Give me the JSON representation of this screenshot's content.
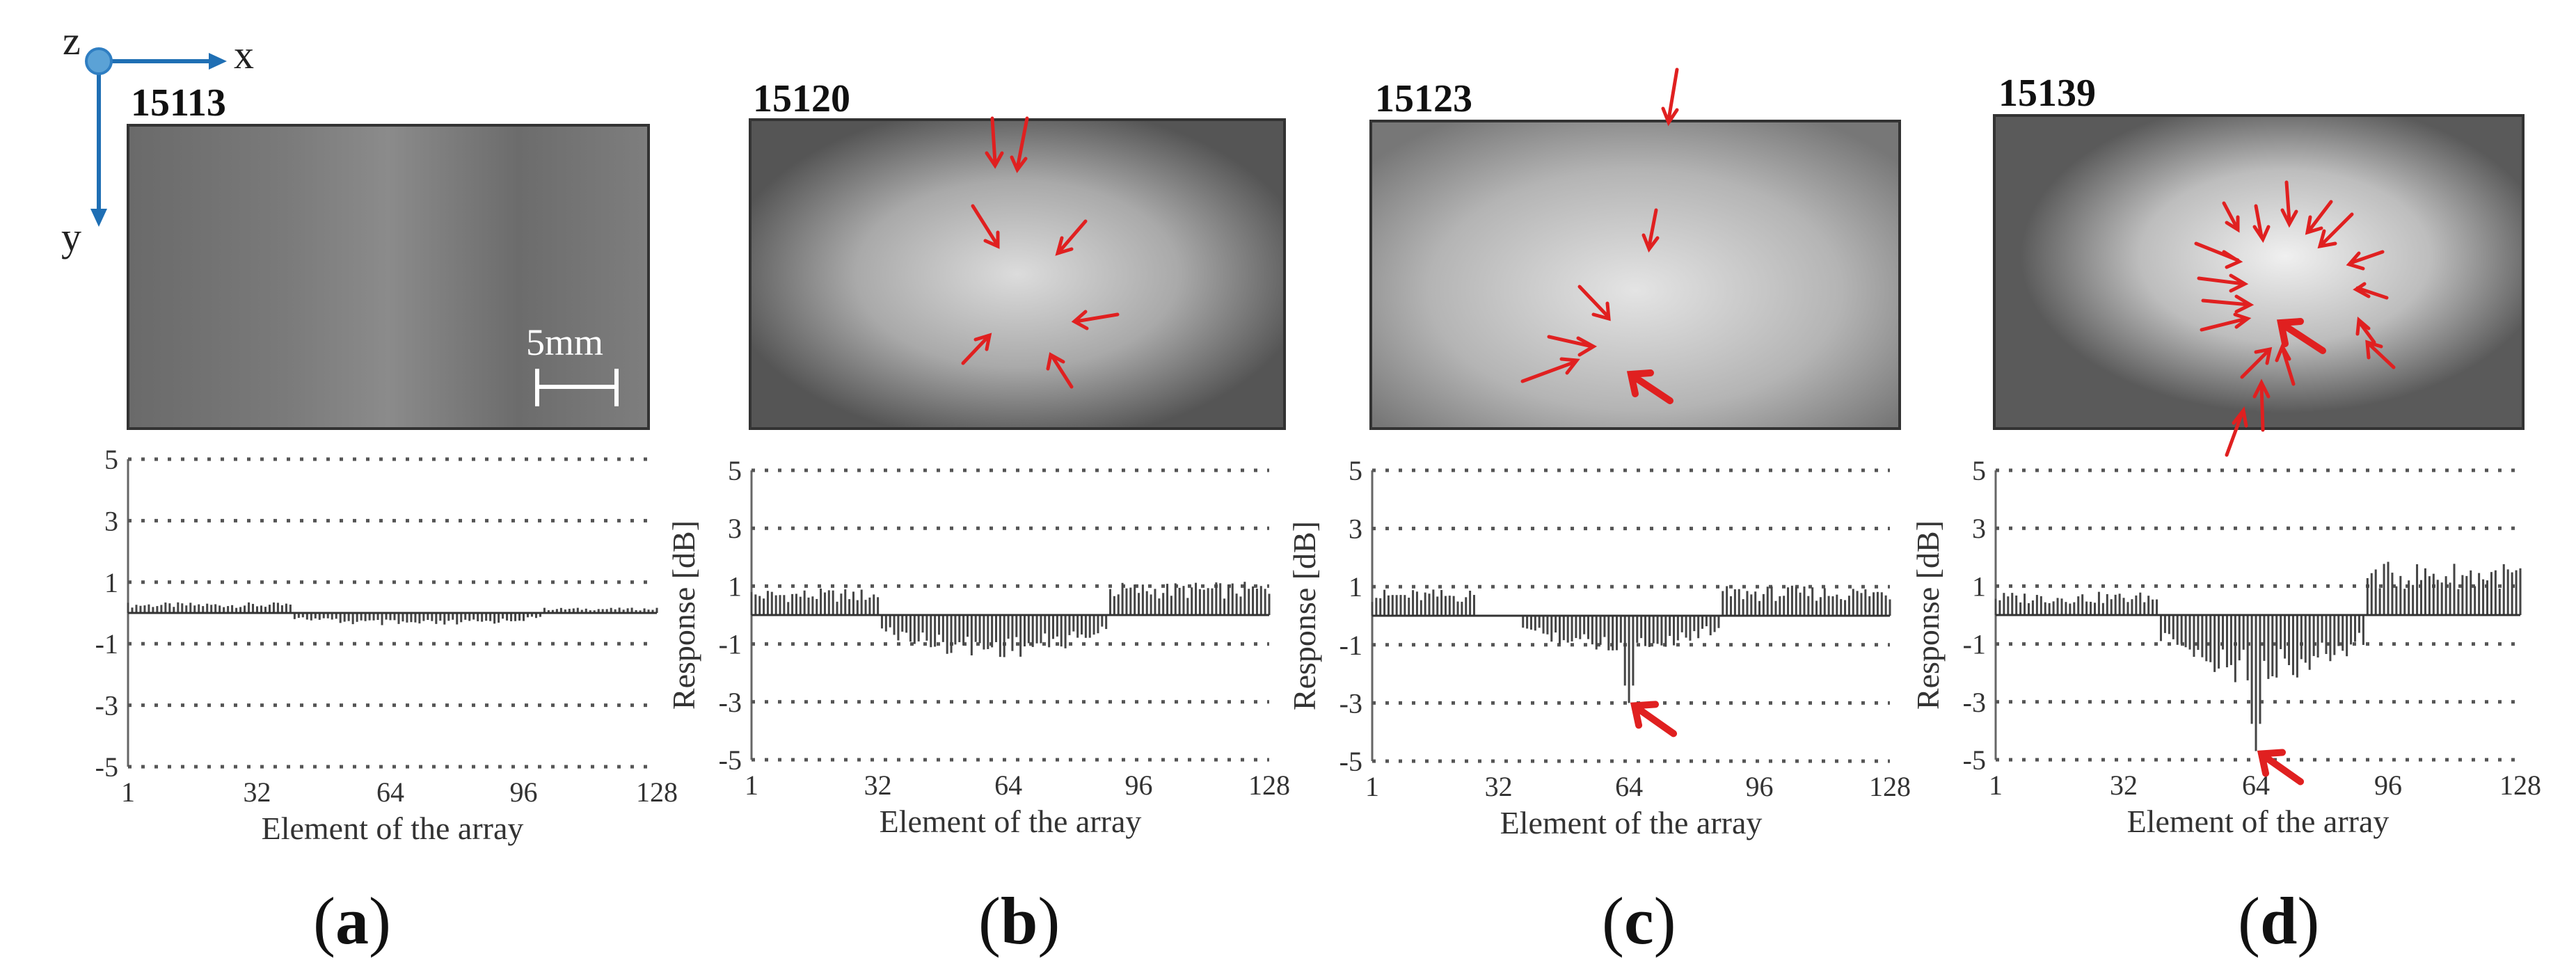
{
  "axes": {
    "x": "x",
    "y": "y",
    "z": "z"
  },
  "scale_bar": "5mm",
  "accent_color": "#e02020",
  "panels": [
    {
      "id": "15113",
      "label_open": "(",
      "label_letter": "a",
      "label_close": ")"
    },
    {
      "id": "15120",
      "label_open": "(",
      "label_letter": "b",
      "label_close": ")"
    },
    {
      "id": "15123",
      "label_open": "(",
      "label_letter": "c",
      "label_close": ")"
    },
    {
      "id": "15139",
      "label_open": "(",
      "label_letter": "d",
      "label_close": ")"
    }
  ],
  "chart_data": [
    {
      "type": "bar",
      "xlabel": "Element of the array",
      "ylabel": "",
      "xlim": [
        1,
        128
      ],
      "ylim": [
        -5,
        5
      ],
      "xticks": [
        "1",
        "32",
        "64",
        "96",
        "128"
      ],
      "yticks": [
        "5",
        "3",
        "1",
        "-1",
        "-3",
        "-5"
      ],
      "segments": [
        {
          "from": 1,
          "to": 40,
          "value": 0.3
        },
        {
          "from": 41,
          "to": 100,
          "value": -0.4
        },
        {
          "from": 101,
          "to": 128,
          "value": 0.15
        }
      ],
      "peak": null
    },
    {
      "type": "bar",
      "xlabel": "Element of the array",
      "ylabel": "Response [dB]",
      "xlim": [
        1,
        128
      ],
      "ylim": [
        -5,
        5
      ],
      "xticks": [
        "1",
        "32",
        "64",
        "96",
        "128"
      ],
      "yticks": [
        "5",
        "3",
        "1",
        "-1",
        "-3",
        "-5"
      ],
      "segments": [
        {
          "from": 1,
          "to": 32,
          "value": 0.8
        },
        {
          "from": 33,
          "to": 88,
          "value": -1.3
        },
        {
          "from": 89,
          "to": 128,
          "value": 1.0
        }
      ],
      "peak": null
    },
    {
      "type": "bar",
      "xlabel": "Element of the array",
      "ylabel": "Response [dB]",
      "xlim": [
        1,
        128
      ],
      "ylim": [
        -5,
        5
      ],
      "xticks": [
        "1",
        "32",
        "64",
        "96",
        "128"
      ],
      "yticks": [
        "5",
        "3",
        "1",
        "-1",
        "-3",
        "-5"
      ],
      "segments": [
        {
          "from": 1,
          "to": 26,
          "value": 0.8
        },
        {
          "from": 38,
          "to": 86,
          "value": -1.1
        },
        {
          "from": 87,
          "to": 128,
          "value": 0.9
        }
      ],
      "peak": {
        "x": 64,
        "value": -3.0
      }
    },
    {
      "type": "bar",
      "xlabel": "Element of the array",
      "ylabel": "Response [dB]",
      "xlim": [
        1,
        128
      ],
      "ylim": [
        -5,
        5
      ],
      "xticks": [
        "1",
        "32",
        "64",
        "96",
        "128"
      ],
      "yticks": [
        "5",
        "3",
        "1",
        "-1",
        "-3",
        "-5"
      ],
      "segments": [
        {
          "from": 1,
          "to": 40,
          "value": 0.7
        },
        {
          "from": 41,
          "to": 90,
          "value": -2.1
        },
        {
          "from": 91,
          "to": 128,
          "value": 1.6
        }
      ],
      "peak": {
        "x": 64,
        "value": -4.7
      }
    }
  ]
}
